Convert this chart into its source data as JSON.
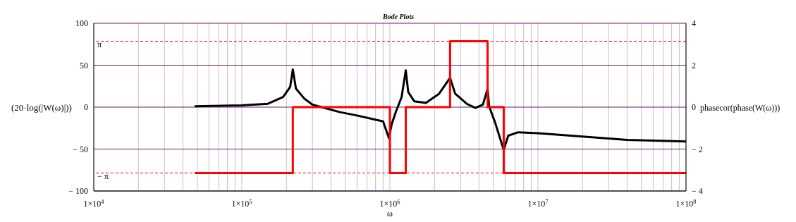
{
  "chart_data": {
    "type": "line",
    "title": "Bode Plots",
    "xlabel": "ω",
    "ylabel": "(20·log(|W(ω)|))",
    "y2label": "phasecor(phase(W(ω)))",
    "log": "x",
    "grid": true,
    "marker": "none",
    "line_style": "solid",
    "xlim": [
      10000,
      100000000
    ],
    "xticks": [
      {
        "value": 10000,
        "label": "1×10$^{4}$"
      },
      {
        "value": 20000,
        "label": null
      },
      {
        "value": 30000,
        "label": null
      },
      {
        "value": 40000,
        "label": null
      },
      {
        "value": 50000,
        "label": null
      },
      {
        "value": 60000,
        "label": null
      },
      {
        "value": 70000,
        "label": null
      },
      {
        "value": 80000,
        "label": null
      },
      {
        "value": 90000,
        "label": null
      },
      {
        "value": 100000,
        "label": "1×10$^{5}$"
      },
      {
        "value": 200000,
        "label": null
      },
      {
        "value": 300000,
        "label": null
      },
      {
        "value": 400000,
        "label": null
      },
      {
        "value": 500000,
        "label": null
      },
      {
        "value": 600000,
        "label": null
      },
      {
        "value": 700000,
        "label": null
      },
      {
        "value": 800000,
        "label": null
      },
      {
        "value": 900000,
        "label": null
      },
      {
        "value": 1000000,
        "label": "1×10$^{6}$"
      },
      {
        "value": 2000000,
        "label": null
      },
      {
        "value": 3000000,
        "label": null
      },
      {
        "value": 4000000,
        "label": null
      },
      {
        "value": 5000000,
        "label": null
      },
      {
        "value": 6000000,
        "label": null
      },
      {
        "value": 7000000,
        "label": null
      },
      {
        "value": 8000000,
        "label": null
      },
      {
        "value": 9000000,
        "label": null
      },
      {
        "value": 10000000,
        "label": "1×10$^{7}$"
      },
      {
        "value": 20000000,
        "label": null
      },
      {
        "value": 30000000,
        "label": null
      },
      {
        "value": 40000000,
        "label": null
      },
      {
        "value": 50000000,
        "label": null
      },
      {
        "value": 60000000,
        "label": null
      },
      {
        "value": 70000000,
        "label": null
      },
      {
        "value": 80000000,
        "label": null
      },
      {
        "value": 90000000,
        "label": null
      },
      {
        "value": 100000000,
        "label": "1×10$^{8}$"
      }
    ],
    "ylim": [
      -100,
      100
    ],
    "yticks": [
      -100,
      -50,
      0,
      50,
      100
    ],
    "y2lim": [
      -4,
      4
    ],
    "y2ticks": [
      -4,
      -2,
      0,
      2,
      4
    ],
    "ref_lines": [
      {
        "axis": "y2",
        "value": 3.14,
        "label": "π",
        "color": "#ff0000",
        "line_style": "dashed"
      },
      {
        "axis": "y2",
        "value": -3.14,
        "label": "− π",
        "color": "#ff0000",
        "line_style": "dashed"
      }
    ],
    "series": [
      {
        "color": "#000000",
        "x": [
          48000,
          100000,
          150000,
          190000,
          212000,
          221000,
          232000,
          265000,
          300000,
          460000,
          600000,
          900000,
          985000,
          1030000,
          1100000,
          1200000,
          1280000,
          1330000,
          1460000,
          1750000,
          2150000,
          2550000,
          2760000,
          3300000,
          3780000,
          4250000,
          4570000,
          4680000,
          5150000,
          5870000,
          6300000,
          7350000,
          10000000,
          20000000,
          40000000,
          100000000
        ],
        "values": [
          1,
          2,
          4,
          12,
          24,
          45,
          22,
          10,
          3,
          -6,
          -10,
          -17,
          -37,
          -20,
          -5,
          12,
          44,
          18,
          7,
          5,
          16,
          35,
          16,
          4,
          -1,
          3,
          22,
          1,
          -19,
          -51,
          -34,
          -30,
          -31,
          -35,
          -39,
          -41
        ]
      },
      {
        "type": "step",
        "axis": "y2",
        "color": "#ff0000",
        "x": [
          48000,
          221000,
          1000000,
          1280000,
          2550000,
          4570000,
          5870000,
          100000000
        ],
        "values": [
          -3.14,
          0,
          -3.14,
          0,
          3.14,
          0,
          -3.14,
          -3.14
        ]
      }
    ]
  }
}
